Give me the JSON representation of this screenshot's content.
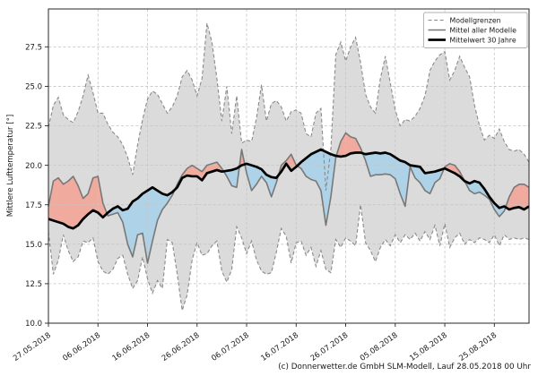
{
  "footer": "(c) Donnerwetter.de GmbH SLM-Modell, Lauf 28.05.2018 00 Uhr",
  "chart_data": {
    "type": "line",
    "title": "",
    "xlabel": "",
    "ylabel": "Mittlere Lufttemperatur [°]",
    "ylim": [
      10.0,
      29.9
    ],
    "grid": true,
    "legend_position": "upper right",
    "legend_labels": [
      "Modellgrenzen",
      "Mittel aller Modelle",
      "Mittelwert 30 Jahre"
    ],
    "y_ticks": [
      10.0,
      12.5,
      15.0,
      17.5,
      20.0,
      22.5,
      25.0,
      27.5
    ],
    "y_tick_labels": [
      "10.0",
      "12.5",
      "15.0",
      "17.5",
      "20.0",
      "22.5",
      "25.0",
      "27.5"
    ],
    "x_tick_days": [
      0,
      10,
      20,
      30,
      40,
      50,
      60,
      70,
      80,
      90
    ],
    "x_tick_labels": [
      "27.05.2018",
      "06.06.2018",
      "16.06.2018",
      "26.06.2018",
      "06.07.2018",
      "16.07.2018",
      "26.07.2018",
      "05.08.2018",
      "15.08.2018",
      "25.08.2018"
    ],
    "x_unit": "day (daily values, day 0 = 27.05.2018)",
    "x_count": 98,
    "colors": {
      "envelope_fill": "#dbdbdb",
      "bounds_line": "#8a8a8a",
      "model_mean_line": "#787878",
      "mean30_line": "#000000",
      "fill_above_mean30": "#f0ab9e",
      "fill_below_mean30": "#aed3e8",
      "grid": "#c6c6c6",
      "spine": "#262626"
    },
    "series": [
      {
        "id": "upper",
        "name": "Modellgrenzen (obere Grenze)",
        "line": "dashed",
        "values": [
          22.4,
          23.8,
          24.3,
          23.2,
          22.9,
          22.7,
          23.4,
          24.4,
          25.7,
          24.6,
          23.3,
          23.3,
          22.6,
          22.1,
          21.8,
          21.3,
          20.5,
          19.4,
          21.3,
          22.9,
          24.2,
          24.7,
          24.5,
          23.9,
          23.3,
          23.7,
          24.4,
          25.6,
          26.0,
          25.4,
          24.4,
          25.5,
          29.0,
          27.8,
          25.5,
          22.8,
          25.0,
          22.0,
          24.4,
          21.4,
          21.6,
          21.5,
          23.0,
          25.1,
          22.8,
          23.9,
          24.1,
          23.7,
          22.8,
          23.4,
          23.5,
          23.3,
          22.0,
          21.8,
          23.3,
          23.6,
          18.4,
          21.0,
          27.0,
          27.8,
          26.6,
          27.5,
          28.1,
          26.5,
          24.5,
          23.7,
          23.3,
          25.5,
          26.9,
          25.2,
          23.5,
          22.5,
          22.9,
          22.8,
          23.1,
          23.6,
          24.4,
          26.0,
          26.6,
          27.0,
          27.2,
          25.4,
          26.0,
          26.9,
          26.2,
          25.6,
          23.8,
          22.5,
          21.6,
          21.9,
          21.7,
          22.3,
          21.5,
          21.0,
          20.9,
          21.0,
          20.7,
          20.2
        ]
      },
      {
        "id": "lower",
        "name": "Modellgrenzen (untere Grenze)",
        "line": "dashed",
        "values": [
          15.8,
          13.1,
          14.0,
          15.6,
          14.6,
          13.9,
          14.2,
          15.2,
          15.1,
          15.4,
          13.9,
          13.3,
          13.1,
          13.4,
          14.1,
          14.3,
          13.1,
          12.2,
          12.7,
          14.2,
          12.8,
          11.9,
          12.7,
          12.2,
          15.3,
          15.1,
          13.1,
          10.8,
          11.8,
          14.0,
          15.1,
          14.3,
          14.4,
          14.9,
          15.2,
          13.3,
          12.6,
          13.4,
          16.1,
          15.4,
          14.4,
          15.2,
          14.0,
          13.3,
          13.1,
          13.2,
          14.5,
          16.0,
          15.5,
          13.8,
          15.1,
          15.2,
          14.3,
          14.8,
          13.6,
          14.6,
          13.4,
          13.2,
          15.3,
          14.8,
          15.4,
          15.2,
          14.9,
          17.5,
          15.1,
          14.6,
          13.9,
          14.8,
          15.3,
          14.9,
          15.6,
          15.1,
          15.6,
          15.3,
          15.7,
          15.2,
          15.8,
          15.3,
          16.2,
          14.9,
          16.3,
          14.8,
          15.4,
          15.7,
          15.0,
          15.3,
          15.1,
          15.4,
          15.3,
          15.1,
          15.6,
          14.9,
          15.6,
          15.3,
          15.4,
          15.3,
          15.4,
          15.3
        ]
      },
      {
        "id": "model_mean",
        "name": "Mittel aller Modelle",
        "line": "solid",
        "values": [
          17.4,
          19.0,
          19.2,
          18.8,
          19.0,
          19.3,
          18.7,
          17.9,
          18.2,
          19.2,
          19.3,
          17.6,
          16.8,
          16.9,
          17.0,
          16.4,
          15.0,
          14.2,
          15.6,
          15.7,
          13.8,
          15.2,
          16.5,
          17.2,
          17.6,
          18.1,
          18.8,
          19.4,
          19.8,
          20.0,
          19.8,
          19.6,
          20.0,
          20.1,
          20.2,
          19.8,
          19.3,
          18.7,
          18.6,
          21.0,
          19.5,
          18.4,
          18.8,
          19.3,
          18.9,
          18.0,
          18.9,
          20.0,
          20.3,
          20.7,
          20.0,
          19.8,
          19.3,
          19.1,
          19.0,
          18.4,
          16.2,
          18.0,
          20.5,
          21.5,
          22.05,
          21.8,
          21.7,
          21.1,
          20.3,
          19.3,
          19.4,
          19.4,
          19.45,
          19.4,
          19.15,
          18.2,
          17.4,
          19.9,
          19.2,
          18.9,
          18.4,
          18.2,
          18.9,
          19.15,
          19.9,
          20.1,
          20.0,
          19.6,
          19.0,
          18.4,
          18.2,
          18.3,
          18.1,
          17.85,
          17.2,
          16.75,
          17.1,
          18.0,
          18.6,
          18.8,
          18.8,
          18.6
        ]
      },
      {
        "id": "mean30",
        "name": "Mittelwert 30 Jahre",
        "line": "solid-bold",
        "values": [
          16.6,
          16.5,
          16.4,
          16.3,
          16.1,
          16.0,
          16.2,
          16.6,
          16.9,
          17.15,
          17.0,
          16.7,
          17.0,
          17.25,
          17.4,
          17.15,
          17.25,
          17.7,
          17.9,
          18.2,
          18.4,
          18.6,
          18.4,
          18.2,
          18.1,
          18.3,
          18.6,
          19.2,
          19.35,
          19.3,
          19.3,
          19.05,
          19.5,
          19.6,
          19.7,
          19.6,
          19.65,
          19.7,
          19.8,
          20.0,
          20.1,
          20.0,
          19.9,
          19.75,
          19.4,
          19.25,
          19.2,
          19.6,
          20.1,
          19.65,
          19.9,
          20.2,
          20.45,
          20.7,
          20.85,
          21.0,
          20.85,
          20.7,
          20.6,
          20.55,
          20.6,
          20.75,
          20.8,
          20.8,
          20.7,
          20.75,
          20.8,
          20.75,
          20.8,
          20.7,
          20.5,
          20.3,
          20.2,
          20.0,
          19.95,
          19.9,
          19.5,
          19.55,
          19.6,
          19.7,
          19.8,
          19.65,
          19.5,
          19.3,
          19.0,
          18.85,
          19.0,
          18.9,
          18.5,
          18.0,
          17.6,
          17.3,
          17.4,
          17.2,
          17.3,
          17.35,
          17.2,
          17.4
        ]
      }
    ]
  }
}
